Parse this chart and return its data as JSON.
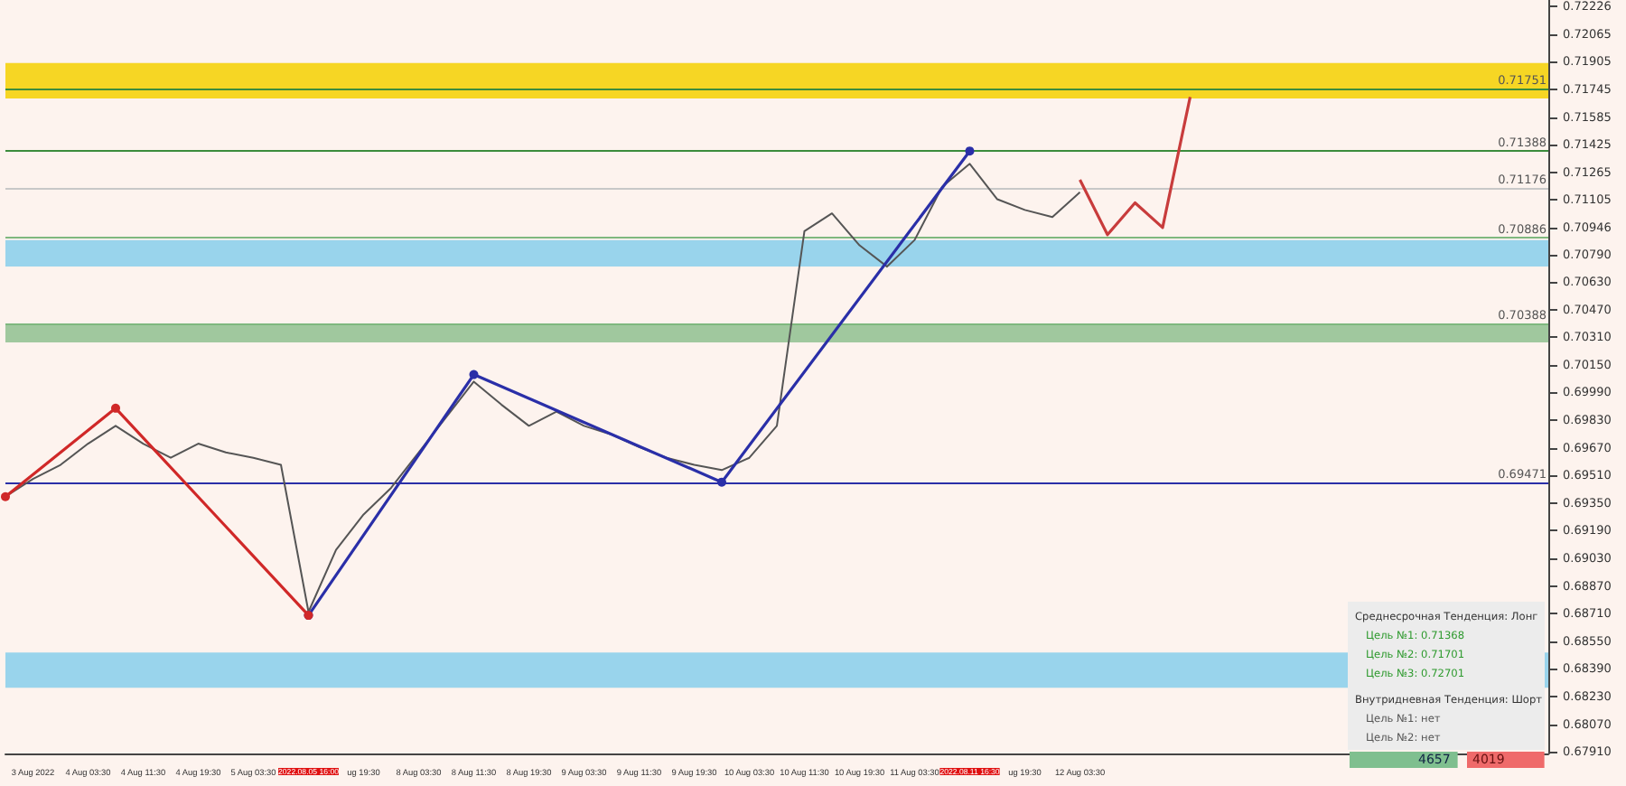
{
  "chart_data": {
    "type": "line",
    "categories": [
      null,
      "3 Aug 2022",
      null,
      "4 Aug 03:30",
      null,
      "4 Aug 11:30",
      null,
      "4 Aug 19:30",
      null,
      "5 Aug 03:30",
      null,
      "2022.08.05 16:00",
      null,
      "ug 19:30",
      null,
      "8 Aug 03:30",
      null,
      "8 Aug 11:30",
      null,
      "8 Aug 19:30",
      null,
      "9 Aug 03:30",
      null,
      "9 Aug 11:30",
      null,
      "9 Aug 19:30",
      null,
      "10 Aug 03:30",
      null,
      "10 Aug 11:30",
      null,
      "10 Aug 19:30",
      null,
      "11 Aug 03:30",
      null,
      "2022.08.11 16:30",
      null,
      "ug 19:30",
      null,
      "12 Aug 03:30",
      null,
      null,
      null,
      null,
      null,
      null,
      null,
      null,
      null,
      null,
      null,
      null,
      null,
      null,
      null,
      null,
      null
    ],
    "series": [
      {
        "color": "#555555",
        "marker": "none",
        "values": [
          0.69387,
          0.6949,
          0.69571,
          0.69694,
          0.69797,
          0.69694,
          0.69612,
          0.69694,
          0.69643,
          0.69612,
          0.69571,
          0.6872,
          0.69079,
          0.69284,
          0.69438,
          0.69643,
          0.69848,
          0.70053,
          0.6992,
          0.69797,
          0.69879,
          0.69797,
          0.69746,
          0.69674,
          0.69612,
          0.69571,
          0.69541,
          0.69612,
          0.69797,
          0.70924,
          0.71027,
          0.70842,
          0.70719,
          0.70873,
          0.71181,
          0.71314,
          0.71109,
          0.71047,
          0.71006,
          0.7115,
          null,
          null,
          null,
          null,
          null,
          null,
          null,
          null,
          null,
          null,
          null,
          null,
          null,
          null,
          null,
          null,
          null
        ]
      },
      {
        "color": "#2a2fa8",
        "marker": "circle",
        "values": [
          null,
          null,
          null,
          null,
          null,
          null,
          null,
          null,
          null,
          null,
          null,
          0.687,
          null,
          null,
          null,
          null,
          null,
          0.70094,
          null,
          null,
          null,
          null,
          null,
          null,
          null,
          null,
          0.69471,
          null,
          null,
          null,
          null,
          null,
          null,
          null,
          null,
          0.71388,
          null,
          null,
          null,
          null,
          null,
          null,
          null,
          null,
          null,
          null,
          null,
          null,
          null,
          null,
          null,
          null,
          null,
          null,
          null,
          null,
          null
        ]
      },
      {
        "color": "#d02828",
        "marker": "circle",
        "values": [
          0.69387,
          null,
          null,
          null,
          0.69899,
          null,
          null,
          null,
          null,
          null,
          null,
          0.687,
          null,
          null,
          null,
          null,
          null,
          null,
          null,
          null,
          null,
          null,
          null,
          null,
          null,
          null,
          null,
          null,
          null,
          null,
          null,
          null,
          null,
          null,
          null,
          null,
          null,
          null,
          null,
          null,
          null,
          null,
          null,
          null,
          null,
          null,
          null,
          null,
          null,
          null,
          null,
          null,
          null,
          null,
          null,
          null,
          null
        ]
      },
      {
        "color": "#c83c3c",
        "marker": "none",
        "values": [
          null,
          null,
          null,
          null,
          null,
          null,
          null,
          null,
          null,
          null,
          null,
          null,
          null,
          null,
          null,
          null,
          null,
          null,
          null,
          null,
          null,
          null,
          null,
          null,
          null,
          null,
          null,
          null,
          null,
          null,
          null,
          null,
          null,
          null,
          null,
          null,
          null,
          null,
          null,
          0.71222,
          0.70904,
          0.71088,
          0.70945,
          0.71701,
          null,
          null,
          null,
          null,
          null,
          null,
          null,
          null,
          null,
          null,
          null,
          null,
          null
        ]
      }
    ],
    "ylim": [
      0.679,
      0.7226
    ],
    "yticks": [
      {
        "value": 0.72226,
        "label": "0.72226"
      },
      {
        "value": 0.72065,
        "label": "0.72065"
      },
      {
        "value": 0.71905,
        "label": "0.71905"
      },
      {
        "value": 0.71745,
        "label": "0.71745"
      },
      {
        "value": 0.71585,
        "label": "0.71585"
      },
      {
        "value": 0.71425,
        "label": "0.71425"
      },
      {
        "value": 0.71265,
        "label": "0.71265"
      },
      {
        "value": 0.71105,
        "label": "0.71105"
      },
      {
        "value": 0.70946,
        "label": "0.70946"
      },
      {
        "value": 0.7079,
        "label": "0.70790"
      },
      {
        "value": 0.7063,
        "label": "0.70630"
      },
      {
        "value": 0.7047,
        "label": "0.70470"
      },
      {
        "value": 0.7031,
        "label": "0.70310"
      },
      {
        "value": 0.7015,
        "label": "0.70150"
      },
      {
        "value": 0.6999,
        "label": "0.69990"
      },
      {
        "value": 0.6983,
        "label": "0.69830"
      },
      {
        "value": 0.6967,
        "label": "0.69670"
      },
      {
        "value": 0.6951,
        "label": "0.69510"
      },
      {
        "value": 0.6935,
        "label": "0.69350"
      },
      {
        "value": 0.6919,
        "label": "0.69190"
      },
      {
        "value": 0.6903,
        "label": "0.69030"
      },
      {
        "value": 0.6887,
        "label": "0.68870"
      },
      {
        "value": 0.6871,
        "label": "0.68710"
      },
      {
        "value": 0.6855,
        "label": "0.68550"
      },
      {
        "value": 0.6839,
        "label": "0.68390"
      },
      {
        "value": 0.6823,
        "label": "0.68230"
      },
      {
        "value": 0.6807,
        "label": "0.68070"
      },
      {
        "value": 0.6791,
        "label": "0.67910"
      }
    ],
    "ref_lines": [
      {
        "axis": "y",
        "value": 0.71751,
        "label": "0.71751",
        "color": "#3c8c3c",
        "line_style": "solid"
      },
      {
        "axis": "y",
        "value": 0.71388,
        "label": "0.71388",
        "color": "#3c8c3c",
        "line_style": "solid"
      },
      {
        "axis": "y",
        "value": 0.71176,
        "label": "0.71176",
        "color": "#c8c8c8",
        "line_style": "solid"
      },
      {
        "axis": "y",
        "value": 0.70886,
        "label": "0.70886",
        "color": "#7fb87f",
        "line_style": "solid"
      },
      {
        "axis": "y",
        "value": 0.70388,
        "label": "0.70388",
        "color": "#7fb87f",
        "line_style": "solid"
      },
      {
        "axis": "y",
        "value": 0.69471,
        "label": "0.69471",
        "color": "#2a2fa8",
        "line_style": "solid"
      }
    ],
    "bands": [
      {
        "axis": "y",
        "from": 0.71693,
        "to": 0.71898,
        "color": "#f5d000"
      },
      {
        "axis": "y",
        "from": 0.7072,
        "to": 0.70873,
        "color": "#87ceeb"
      },
      {
        "axis": "y",
        "from": 0.7028,
        "to": 0.7038,
        "color": "#8fc08f"
      },
      {
        "axis": "y",
        "from": 0.6828,
        "to": 0.68485,
        "color": "#87ceeb"
      }
    ],
    "annotations": [
      "Среднесрочная Тенденция: Лонг",
      "Цель №1: 0.71368",
      "Цель №2: 0.71701",
      "Цель №3: 0.72701",
      "Внутридневная Тенденция: Шорт",
      "Цель №1: нет",
      "Цель №2: нет",
      "4657",
      "4019"
    ],
    "grid": false
  }
}
